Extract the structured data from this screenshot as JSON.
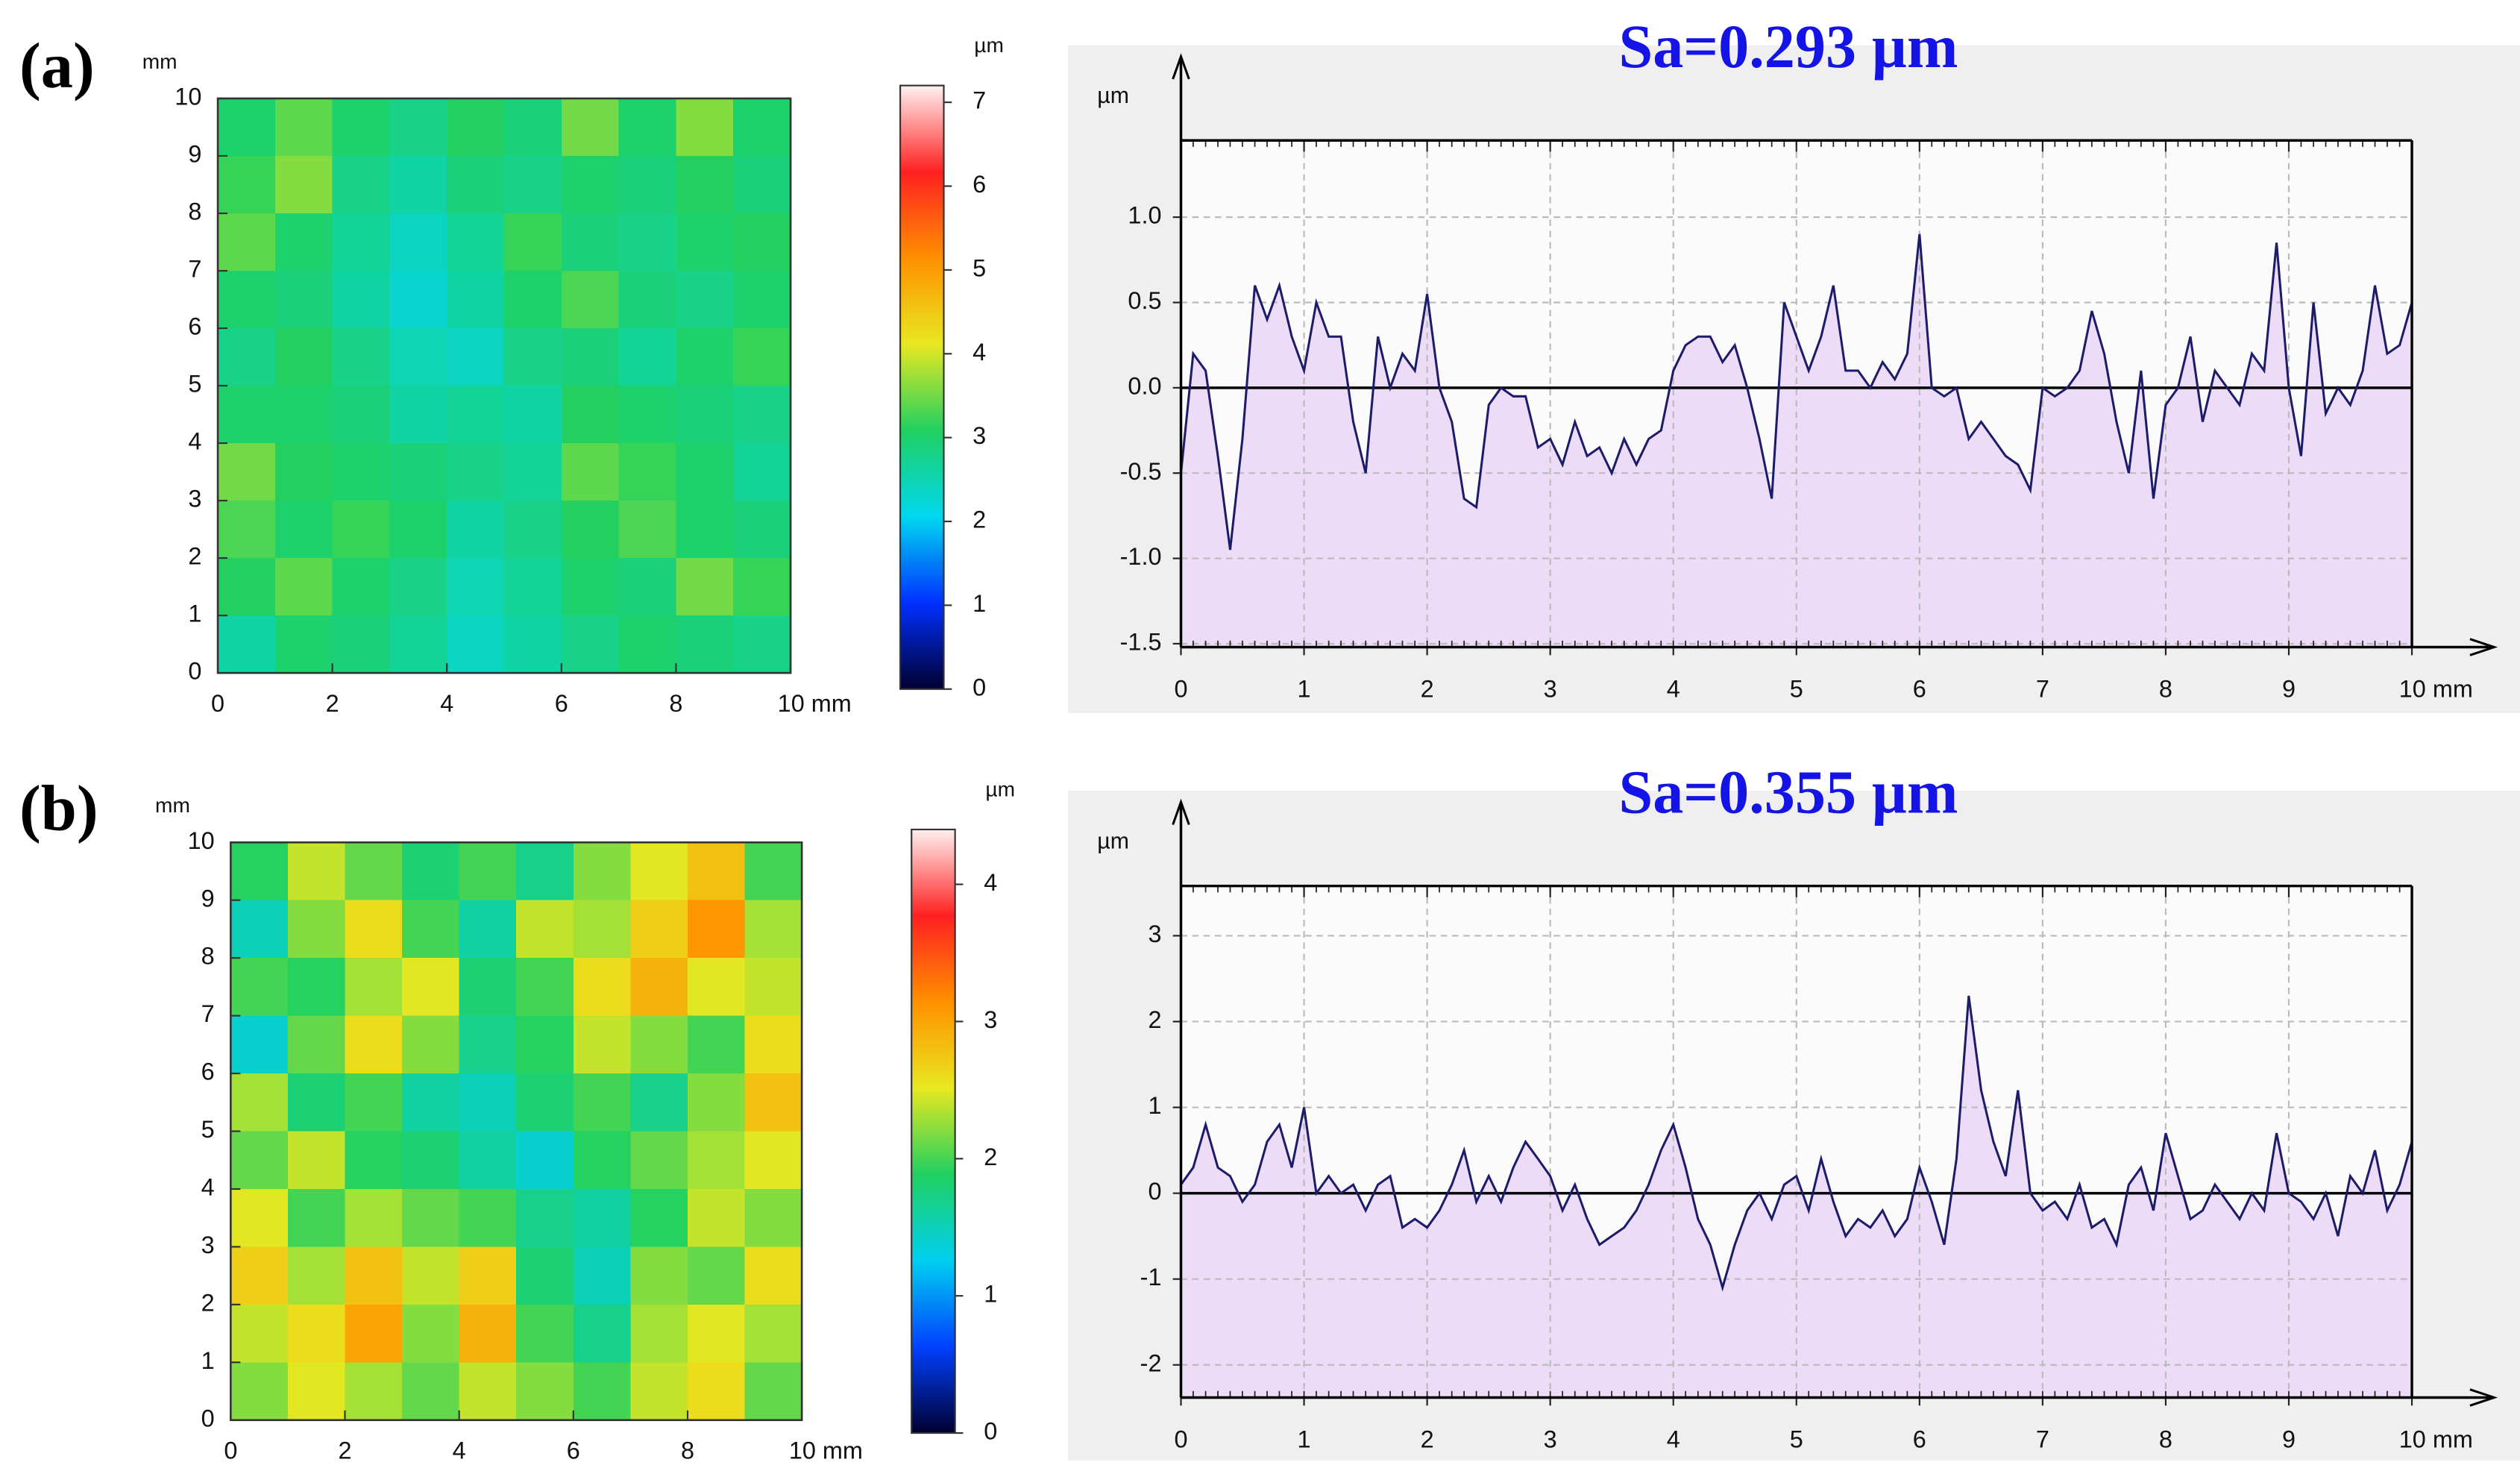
{
  "chart_data": [
    {
      "type": "heatmap",
      "panel_label": "(a)",
      "y_label": "mm",
      "xlim": [
        0,
        10
      ],
      "ylim": [
        0,
        10
      ],
      "xticks": [
        0,
        2,
        4,
        6,
        8,
        {
          "value": 10,
          "label": "10 mm"
        }
      ],
      "yticks": [
        0,
        1,
        2,
        3,
        4,
        5,
        6,
        7,
        8,
        9,
        10
      ],
      "z": [
        [
          3.0,
          3.4,
          3.0,
          2.8,
          3.1,
          2.9,
          3.5,
          3.0,
          3.6,
          3.0
        ],
        [
          3.2,
          3.6,
          2.8,
          2.6,
          2.9,
          2.8,
          3.0,
          2.9,
          3.1,
          2.9
        ],
        [
          3.4,
          3.0,
          2.7,
          2.4,
          2.7,
          3.2,
          2.9,
          2.8,
          3.0,
          3.1
        ],
        [
          3.0,
          2.9,
          2.6,
          2.3,
          2.6,
          3.0,
          3.3,
          2.9,
          2.8,
          3.0
        ],
        [
          2.8,
          3.1,
          2.8,
          2.5,
          2.4,
          2.8,
          2.9,
          2.7,
          3.0,
          3.2
        ],
        [
          3.0,
          3.0,
          2.9,
          2.6,
          2.7,
          2.6,
          3.1,
          3.0,
          2.9,
          2.8
        ],
        [
          3.5,
          3.1,
          3.0,
          2.9,
          2.8,
          2.7,
          3.4,
          3.2,
          3.0,
          2.7
        ],
        [
          3.3,
          3.0,
          3.2,
          3.0,
          2.6,
          2.8,
          3.1,
          3.3,
          3.0,
          2.9
        ],
        [
          3.1,
          3.4,
          3.0,
          2.8,
          2.5,
          2.7,
          3.0,
          2.9,
          3.5,
          3.2
        ],
        [
          2.6,
          3.0,
          2.9,
          2.7,
          2.4,
          2.6,
          2.8,
          3.0,
          2.9,
          2.8
        ]
      ],
      "colorbar": {
        "label": "µm",
        "lim": [
          0,
          7.2
        ],
        "ticks": [
          0,
          1,
          2,
          3,
          4,
          5,
          6,
          7
        ],
        "colors": [
          "#000030",
          "#0030ff",
          "#00d8f0",
          "#20d060",
          "#e8e820",
          "#ff9000",
          "#ff2020",
          "#fff0f0"
        ]
      }
    },
    {
      "type": "area",
      "title": "Sa=0.293 µm",
      "y_label": "µm",
      "x": [
        0,
        0.1,
        0.2,
        0.3,
        0.4,
        0.5,
        0.6,
        0.7,
        0.8,
        0.9,
        1,
        1.1,
        1.2,
        1.3,
        1.4,
        1.5,
        1.6,
        1.7,
        1.8,
        1.9,
        2,
        2.1,
        2.2,
        2.3,
        2.4,
        2.5,
        2.6,
        2.7,
        2.8,
        2.9,
        3,
        3.1,
        3.2,
        3.3,
        3.4,
        3.5,
        3.6,
        3.7,
        3.8,
        3.9,
        4,
        4.1,
        4.2,
        4.3,
        4.4,
        4.5,
        4.6,
        4.7,
        4.8,
        4.9,
        5,
        5.1,
        5.2,
        5.3,
        5.4,
        5.5,
        5.6,
        5.7,
        5.8,
        5.9,
        6,
        6.1,
        6.2,
        6.3,
        6.4,
        6.5,
        6.6,
        6.7,
        6.8,
        6.9,
        7,
        7.1,
        7.2,
        7.3,
        7.4,
        7.5,
        7.6,
        7.7,
        7.8,
        7.9,
        8,
        8.1,
        8.2,
        8.3,
        8.4,
        8.5,
        8.6,
        8.7,
        8.8,
        8.9,
        9,
        9.1,
        9.2,
        9.3,
        9.4,
        9.5,
        9.6,
        9.7,
        9.8,
        9.9,
        10
      ],
      "values": [
        -0.5,
        0.2,
        0.1,
        -0.4,
        -0.95,
        -0.3,
        0.6,
        0.4,
        0.6,
        0.3,
        0.1,
        0.5,
        0.3,
        0.3,
        -0.2,
        -0.5,
        0.3,
        0.0,
        0.2,
        0.1,
        0.55,
        0.0,
        -0.2,
        -0.65,
        -0.7,
        -0.1,
        0.0,
        -0.05,
        -0.05,
        -0.35,
        -0.3,
        -0.45,
        -0.2,
        -0.4,
        -0.35,
        -0.5,
        -0.3,
        -0.45,
        -0.3,
        -0.25,
        0.1,
        0.25,
        0.3,
        0.3,
        0.15,
        0.25,
        0.0,
        -0.3,
        -0.65,
        0.5,
        0.3,
        0.1,
        0.3,
        0.6,
        0.1,
        0.1,
        0.0,
        0.15,
        0.05,
        0.2,
        0.9,
        0.0,
        -0.05,
        0.0,
        -0.3,
        -0.2,
        -0.3,
        -0.4,
        -0.45,
        -0.6,
        0.0,
        -0.05,
        0.0,
        0.1,
        0.45,
        0.2,
        -0.2,
        -0.5,
        0.1,
        -0.65,
        -0.1,
        0.0,
        0.3,
        -0.2,
        0.1,
        0.0,
        -0.1,
        0.2,
        0.1,
        0.85,
        0.0,
        -0.4,
        0.5,
        -0.15,
        0.0,
        -0.1,
        0.1,
        0.6,
        0.2,
        0.25,
        0.5
      ],
      "xlim": [
        0,
        10
      ],
      "ylim": [
        -1.52,
        1.45
      ],
      "xticks": [
        0,
        1,
        2,
        3,
        4,
        5,
        6,
        7,
        8,
        9,
        {
          "value": 10,
          "label": "10 mm"
        }
      ],
      "yticks": [
        {
          "value": -1.5,
          "label": "-1.5"
        },
        {
          "value": -1,
          "label": "-1.0"
        },
        -0.5,
        {
          "value": 0,
          "label": "0.0"
        },
        0.5,
        {
          "value": 1,
          "label": "1.0"
        }
      ],
      "grid": true,
      "line_color": "#1c1c6a",
      "fill_color": "#ecdcf8"
    },
    {
      "type": "heatmap",
      "panel_label": "(b)",
      "y_label": "mm",
      "xlim": [
        0,
        10
      ],
      "ylim": [
        0,
        10
      ],
      "xticks": [
        0,
        2,
        4,
        6,
        8,
        {
          "value": 10,
          "label": "10 mm"
        }
      ],
      "yticks": [
        0,
        1,
        2,
        3,
        4,
        5,
        6,
        7,
        8,
        9,
        10
      ],
      "z": [
        [
          1.9,
          2.4,
          2.1,
          1.8,
          2.0,
          1.7,
          2.2,
          2.5,
          2.8,
          2.0
        ],
        [
          1.5,
          2.2,
          2.6,
          2.0,
          1.6,
          2.4,
          2.3,
          2.7,
          3.1,
          2.3
        ],
        [
          2.0,
          1.9,
          2.3,
          2.5,
          1.8,
          2.0,
          2.6,
          2.9,
          2.5,
          2.4
        ],
        [
          1.4,
          2.1,
          2.6,
          2.2,
          1.7,
          1.9,
          2.4,
          2.2,
          2.0,
          2.6
        ],
        [
          2.3,
          1.8,
          2.0,
          1.6,
          1.5,
          1.8,
          2.0,
          1.7,
          2.2,
          2.8
        ],
        [
          2.1,
          2.4,
          1.9,
          1.8,
          1.6,
          1.4,
          1.9,
          2.1,
          2.3,
          2.5
        ],
        [
          2.5,
          2.0,
          2.3,
          2.1,
          2.0,
          1.7,
          1.6,
          1.9,
          2.4,
          2.2
        ],
        [
          2.7,
          2.3,
          2.8,
          2.4,
          2.7,
          1.8,
          1.5,
          2.2,
          2.1,
          2.6
        ],
        [
          2.4,
          2.6,
          3.0,
          2.2,
          2.9,
          2.0,
          1.7,
          2.3,
          2.5,
          2.3
        ],
        [
          2.2,
          2.5,
          2.3,
          2.1,
          2.4,
          2.2,
          2.0,
          2.4,
          2.6,
          2.1
        ]
      ],
      "colorbar": {
        "label": "µm",
        "lim": [
          0,
          4.4
        ],
        "ticks": [
          0,
          1,
          2,
          3,
          4
        ],
        "colors": [
          "#000030",
          "#0040ff",
          "#00d0f0",
          "#20d060",
          "#e8e820",
          "#ff9000",
          "#ff2020",
          "#fff0f0"
        ]
      }
    },
    {
      "type": "area",
      "title": "Sa=0.355 µm",
      "y_label": "µm",
      "x": [
        0,
        0.1,
        0.2,
        0.3,
        0.4,
        0.5,
        0.6,
        0.7,
        0.8,
        0.9,
        1,
        1.1,
        1.2,
        1.3,
        1.4,
        1.5,
        1.6,
        1.7,
        1.8,
        1.9,
        2,
        2.1,
        2.2,
        2.3,
        2.4,
        2.5,
        2.6,
        2.7,
        2.8,
        2.9,
        3,
        3.1,
        3.2,
        3.3,
        3.4,
        3.5,
        3.6,
        3.7,
        3.8,
        3.9,
        4,
        4.1,
        4.2,
        4.3,
        4.4,
        4.5,
        4.6,
        4.7,
        4.8,
        4.9,
        5,
        5.1,
        5.2,
        5.3,
        5.4,
        5.5,
        5.6,
        5.7,
        5.8,
        5.9,
        6,
        6.1,
        6.2,
        6.3,
        6.4,
        6.5,
        6.6,
        6.7,
        6.8,
        6.9,
        7,
        7.1,
        7.2,
        7.3,
        7.4,
        7.5,
        7.6,
        7.7,
        7.8,
        7.9,
        8,
        8.1,
        8.2,
        8.3,
        8.4,
        8.5,
        8.6,
        8.7,
        8.8,
        8.9,
        9,
        9.1,
        9.2,
        9.3,
        9.4,
        9.5,
        9.6,
        9.7,
        9.8,
        9.9,
        10
      ],
      "values": [
        0.1,
        0.3,
        0.8,
        0.3,
        0.2,
        -0.1,
        0.1,
        0.6,
        0.8,
        0.3,
        1.0,
        0.0,
        0.2,
        0.0,
        0.1,
        -0.2,
        0.1,
        0.2,
        -0.4,
        -0.3,
        -0.4,
        -0.2,
        0.1,
        0.5,
        -0.1,
        0.2,
        -0.1,
        0.3,
        0.6,
        0.4,
        0.2,
        -0.2,
        0.1,
        -0.3,
        -0.6,
        -0.5,
        -0.4,
        -0.2,
        0.1,
        0.5,
        0.8,
        0.3,
        -0.3,
        -0.6,
        -1.1,
        -0.6,
        -0.2,
        0.0,
        -0.3,
        0.1,
        0.2,
        -0.2,
        0.4,
        -0.1,
        -0.5,
        -0.3,
        -0.4,
        -0.2,
        -0.5,
        -0.3,
        0.3,
        -0.1,
        -0.6,
        0.4,
        2.3,
        1.2,
        0.6,
        0.2,
        1.2,
        0.0,
        -0.2,
        -0.1,
        -0.3,
        0.1,
        -0.4,
        -0.3,
        -0.6,
        0.1,
        0.3,
        -0.2,
        0.7,
        0.2,
        -0.3,
        -0.2,
        0.1,
        -0.1,
        -0.3,
        0.0,
        -0.2,
        0.7,
        0.0,
        -0.1,
        -0.3,
        0.0,
        -0.5,
        0.2,
        0.0,
        0.5,
        -0.2,
        0.1,
        0.6
      ],
      "xlim": [
        0,
        10
      ],
      "ylim": [
        -2.38,
        3.58
      ],
      "xticks": [
        0,
        1,
        2,
        3,
        4,
        5,
        6,
        7,
        8,
        9,
        {
          "value": 10,
          "label": "10 mm"
        }
      ],
      "yticks": [
        -2,
        -1,
        0,
        1,
        2,
        3
      ],
      "grid": true,
      "line_color": "#1c1c6a",
      "fill_color": "#ecdcf8"
    }
  ]
}
